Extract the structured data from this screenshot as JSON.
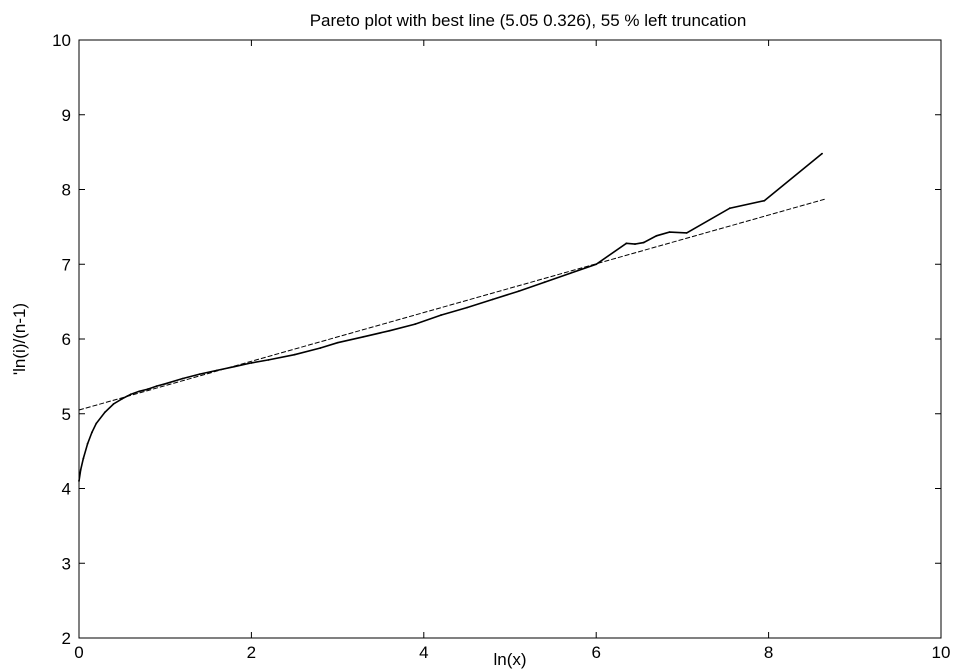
{
  "chart_data": {
    "type": "scatter",
    "title": "Pareto plot with best line (5.05 0.326), 55 % left truncation",
    "xlabel": "ln(x)",
    "ylabel": "'ln(i)/(n-1)",
    "xlim": [
      0,
      10
    ],
    "ylim": [
      2,
      10
    ],
    "x_ticks": [
      "0",
      "2",
      "4",
      "6",
      "8",
      "10"
    ],
    "y_ticks": [
      "2",
      "3",
      "4",
      "5",
      "6",
      "7",
      "8",
      "9",
      "10"
    ],
    "grid": false,
    "legend": "none",
    "series": [
      {
        "kind": "points",
        "color": "#000000",
        "x": [
          0.0,
          0.02,
          0.05,
          0.1,
          0.15,
          0.2,
          0.3,
          0.4,
          0.5,
          0.6,
          0.7,
          0.8,
          0.9,
          1.0,
          1.2,
          1.4,
          1.6,
          1.8,
          2.0,
          2.2,
          2.5,
          2.8,
          3.0,
          3.3,
          3.6,
          3.9,
          4.2,
          4.5,
          4.8,
          5.1,
          5.4,
          5.7,
          6.0,
          6.35,
          6.45,
          6.55,
          6.7,
          6.85,
          7.05,
          7.55,
          7.95,
          8.62
        ],
        "y": [
          4.1,
          4.25,
          4.4,
          4.6,
          4.75,
          4.87,
          5.02,
          5.13,
          5.2,
          5.26,
          5.3,
          5.33,
          5.37,
          5.4,
          5.47,
          5.53,
          5.58,
          5.63,
          5.68,
          5.72,
          5.79,
          5.88,
          5.95,
          6.03,
          6.11,
          6.2,
          6.32,
          6.42,
          6.53,
          6.64,
          6.76,
          6.88,
          7.0,
          7.28,
          7.27,
          7.29,
          7.38,
          7.43,
          7.42,
          7.75,
          7.85,
          8.48
        ]
      },
      {
        "kind": "best-line",
        "color": "#000000",
        "dashed": true,
        "intercept": 5.05,
        "slope": 0.326,
        "x_range": [
          0,
          8.65
        ]
      }
    ]
  }
}
